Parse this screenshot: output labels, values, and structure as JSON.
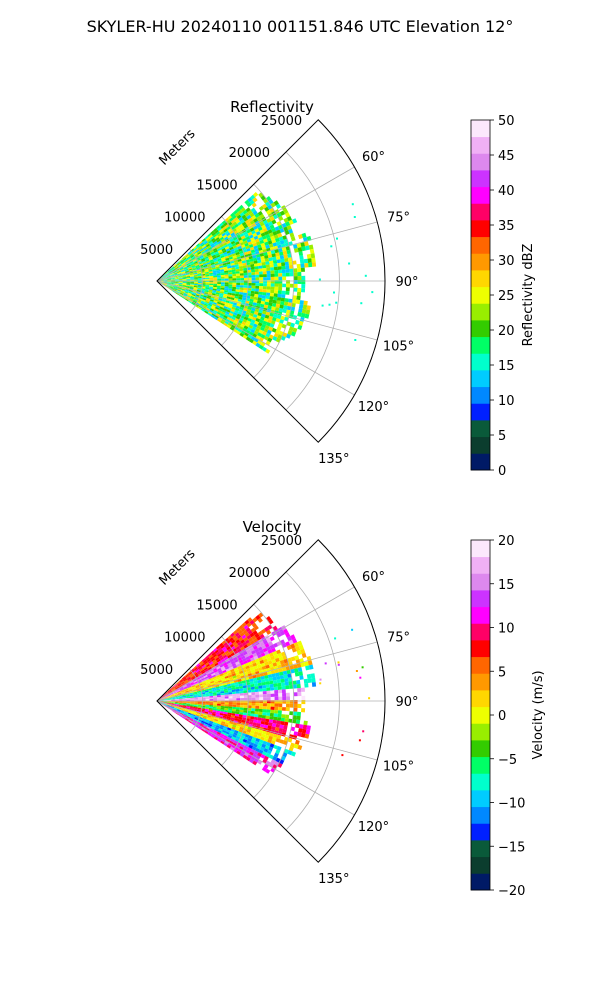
{
  "figure": {
    "suptitle": "SKYLER-HU  20240110  001151.846 UTC Elevation 12°"
  },
  "chart_data": [
    {
      "type": "heatmap",
      "projection": "polar-sector",
      "title": "Reflectivity",
      "radial_label": "Meters",
      "radial_ticks": [
        5000,
        10000,
        15000,
        20000,
        25000
      ],
      "radial_tick_labels": [
        "5000",
        "10000",
        "15000",
        "20000",
        "25000"
      ],
      "rlim": [
        0,
        25000
      ],
      "theta_range_deg": [
        45,
        135
      ],
      "theta_ticks_deg": [
        60,
        75,
        90,
        105,
        120,
        135
      ],
      "theta_tick_labels": [
        "60°",
        "75°",
        "90°",
        "105°",
        "120°",
        "135°"
      ],
      "grid": true,
      "data_extent": {
        "max_range_m": 17500,
        "theta_deg": [
          48,
          122
        ]
      },
      "colorbar": {
        "label": "Reflectivity dBZ",
        "range": [
          0,
          50
        ],
        "ticks": [
          0,
          5,
          10,
          15,
          20,
          25,
          30,
          35,
          40,
          45,
          50
        ],
        "tick_labels": [
          "0",
          "5",
          "10",
          "15",
          "20",
          "25",
          "30",
          "35",
          "40",
          "45",
          "50"
        ],
        "colors": [
          "#001a66",
          "#0b3d2e",
          "#0a5a3a",
          "#0020ff",
          "#0088ff",
          "#00ccff",
          "#00ffcc",
          "#00ff66",
          "#33cc00",
          "#99ee00",
          "#eeff00",
          "#ffd700",
          "#ff9900",
          "#ff6600",
          "#ff0000",
          "#ff0066",
          "#ff00ff",
          "#cc33ff",
          "#dd88ee",
          "#f0b0f5",
          "#fce8fc"
        ]
      },
      "dominant_values": [
        15,
        20,
        25
      ]
    },
    {
      "type": "heatmap",
      "projection": "polar-sector",
      "title": "Velocity",
      "radial_label": "Meters",
      "radial_ticks": [
        5000,
        10000,
        15000,
        20000,
        25000
      ],
      "radial_tick_labels": [
        "5000",
        "10000",
        "15000",
        "20000",
        "25000"
      ],
      "rlim": [
        0,
        25000
      ],
      "theta_range_deg": [
        45,
        135
      ],
      "theta_ticks_deg": [
        60,
        75,
        90,
        105,
        120,
        135
      ],
      "theta_tick_labels": [
        "60°",
        "75°",
        "90°",
        "105°",
        "120°",
        "135°"
      ],
      "grid": true,
      "data_extent": {
        "max_range_m": 17500,
        "theta_deg": [
          48,
          122
        ]
      },
      "colorbar": {
        "label": "Velocity (m/s)",
        "range": [
          -20,
          20
        ],
        "ticks": [
          -20,
          -15,
          -10,
          -5,
          0,
          5,
          10,
          15,
          20
        ],
        "tick_labels": [
          "−20",
          "−15",
          "−10",
          "−5",
          "0",
          "5",
          "10",
          "15",
          "20"
        ],
        "colors": [
          "#001a66",
          "#0b3d2e",
          "#0a5a3a",
          "#0020ff",
          "#0088ff",
          "#00ccff",
          "#00ffcc",
          "#00ff66",
          "#33cc00",
          "#99ee00",
          "#eeff00",
          "#ffd700",
          "#ff9900",
          "#ff6600",
          "#ff0000",
          "#ff0066",
          "#ff00ff",
          "#cc33ff",
          "#dd88ee",
          "#f0b0f5",
          "#fce8fc"
        ]
      },
      "bands": [
        {
          "theta_deg": [
            48,
            58
          ],
          "value": 8
        },
        {
          "theta_deg": [
            58,
            66
          ],
          "value": 14
        },
        {
          "theta_deg": [
            66,
            76
          ],
          "value": 2
        },
        {
          "theta_deg": [
            76,
            84
          ],
          "value": -8
        },
        {
          "theta_deg": [
            84,
            89
          ],
          "value": 16
        },
        {
          "theta_deg": [
            89,
            94
          ],
          "value": 4
        },
        {
          "theta_deg": [
            94,
            99
          ],
          "value": -4
        },
        {
          "theta_deg": [
            99,
            104
          ],
          "value": 9
        },
        {
          "theta_deg": [
            104,
            110
          ],
          "value": 2
        },
        {
          "theta_deg": [
            110,
            116
          ],
          "value": -10
        },
        {
          "theta_deg": [
            116,
            122
          ],
          "value": 12
        }
      ]
    }
  ]
}
